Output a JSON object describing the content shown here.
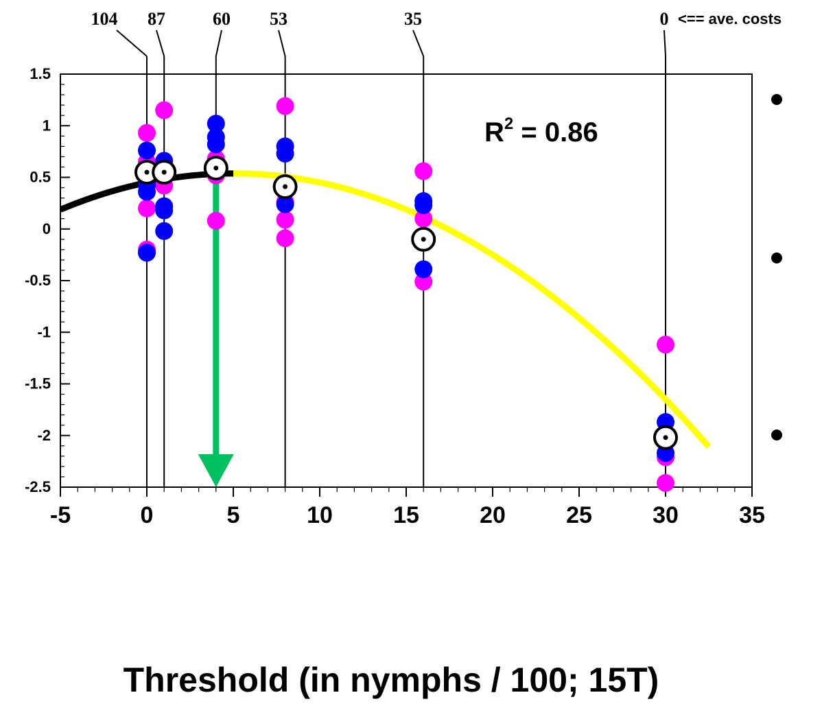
{
  "chart_data": {
    "type": "scatter",
    "xlabel": "Threshold (in nymphs / 100; 15T)",
    "ylabel": "",
    "xlim": [
      -5,
      35
    ],
    "ylim": [
      -2.5,
      1.5
    ],
    "x_ticks": [
      "-5",
      "0",
      "5",
      "10",
      "15",
      "20",
      "25",
      "30",
      "35"
    ],
    "y_ticks": [
      "-2.5",
      "-2",
      "-1.5",
      "-1",
      "-0.5",
      "0",
      "0.5",
      "1",
      "1.5"
    ],
    "annotation": {
      "prefix": "R",
      "sup": "2",
      "suffix": " = 0.86"
    },
    "cost_labels": [
      {
        "x": 0,
        "label": "104"
      },
      {
        "x": 1,
        "label": "87"
      },
      {
        "x": 4,
        "label": "60"
      },
      {
        "x": 8,
        "label": "53"
      },
      {
        "x": 16,
        "label": "35"
      },
      {
        "x": 30,
        "label": "0"
      }
    ],
    "cost_note": "<== ave. costs",
    "colors": {
      "magenta": "#ff00ff",
      "blue": "#0000ff",
      "fit_black": "#000000",
      "fit_yellow": "#ffff00",
      "arrow": "#00c060"
    },
    "series": [
      {
        "color": "#ff00ff",
        "points": [
          [
            0,
            0.93
          ],
          [
            0,
            0.65
          ],
          [
            0,
            0.2
          ],
          [
            0,
            -0.2
          ],
          [
            1,
            1.15
          ],
          [
            1,
            0.42
          ],
          [
            4,
            0.68
          ],
          [
            4,
            0.52
          ],
          [
            4,
            0.08
          ],
          [
            8,
            1.19
          ],
          [
            8,
            0.26
          ],
          [
            8,
            0.09
          ],
          [
            8,
            -0.09
          ],
          [
            16,
            0.56
          ],
          [
            16,
            0.1
          ],
          [
            16,
            -0.51
          ],
          [
            30,
            -1.12
          ],
          [
            30,
            -2.21
          ],
          [
            30,
            -2.46
          ]
        ]
      },
      {
        "color": "#0000ff",
        "points": [
          [
            0,
            0.76
          ],
          [
            0,
            0.42
          ],
          [
            0,
            0.36
          ],
          [
            0,
            -0.23
          ],
          [
            1,
            0.66
          ],
          [
            1,
            0.22
          ],
          [
            1,
            0.18
          ],
          [
            1,
            -0.02
          ],
          [
            4,
            1.02
          ],
          [
            4,
            0.89
          ],
          [
            4,
            0.82
          ],
          [
            8,
            0.8
          ],
          [
            8,
            0.73
          ],
          [
            8,
            0.24
          ],
          [
            16,
            0.27
          ],
          [
            16,
            0.23
          ],
          [
            16,
            -0.39
          ],
          [
            30,
            -1.87
          ],
          [
            30,
            -2.17
          ]
        ]
      },
      {
        "marker": "circle-dot",
        "points": [
          [
            0,
            0.55
          ],
          [
            1,
            0.55
          ],
          [
            4,
            0.59
          ],
          [
            8,
            0.41
          ],
          [
            16,
            -0.1
          ],
          [
            30,
            -2.02
          ]
        ]
      }
    ],
    "fit": {
      "type": "quadratic",
      "a": -0.0035,
      "b": 0.035,
      "c": 0.45,
      "black_range": [
        -5,
        5
      ],
      "yellow_range": [
        5,
        32.5
      ]
    },
    "arrow": {
      "x": 4,
      "from_y": 0.55,
      "to_y": -2.5
    }
  }
}
